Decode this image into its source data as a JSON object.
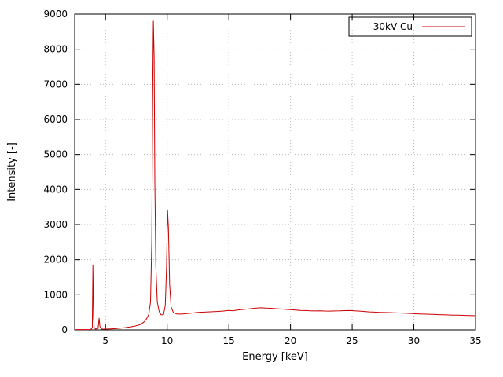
{
  "chart_data": {
    "type": "line",
    "title": "",
    "xlabel": "Energy [keV]",
    "ylabel": "Intensity [-]",
    "xlim": [
      2.5,
      35
    ],
    "ylim": [
      0,
      9000
    ],
    "xticks": [
      5,
      10,
      15,
      20,
      25,
      30,
      35
    ],
    "yticks": [
      0,
      1000,
      2000,
      3000,
      4000,
      5000,
      6000,
      7000,
      8000,
      9000
    ],
    "grid": true,
    "grid_color": "#b8b8b8",
    "axis_color": "#000000",
    "background": "#ffffff",
    "legend_position": "top-right",
    "legend_box": true,
    "series": [
      {
        "name": "30kV Cu",
        "color": "#cc0000",
        "points": [
          [
            2.6,
            8
          ],
          [
            3.0,
            10
          ],
          [
            3.4,
            8
          ],
          [
            3.8,
            12
          ],
          [
            3.93,
            60
          ],
          [
            3.98,
            1850
          ],
          [
            4.03,
            400
          ],
          [
            4.08,
            60
          ],
          [
            4.2,
            25
          ],
          [
            4.4,
            40
          ],
          [
            4.48,
            330
          ],
          [
            4.55,
            90
          ],
          [
            4.7,
            25
          ],
          [
            5.0,
            22
          ],
          [
            5.4,
            28
          ],
          [
            5.8,
            35
          ],
          [
            6.2,
            50
          ],
          [
            6.6,
            65
          ],
          [
            7.0,
            85
          ],
          [
            7.4,
            110
          ],
          [
            7.8,
            150
          ],
          [
            8.1,
            220
          ],
          [
            8.3,
            300
          ],
          [
            8.5,
            430
          ],
          [
            8.65,
            800
          ],
          [
            8.75,
            2500
          ],
          [
            8.82,
            6500
          ],
          [
            8.88,
            8800
          ],
          [
            8.94,
            7800
          ],
          [
            9.0,
            4200
          ],
          [
            9.08,
            1800
          ],
          [
            9.2,
            800
          ],
          [
            9.35,
            520
          ],
          [
            9.5,
            430
          ],
          [
            9.7,
            430
          ],
          [
            9.85,
            700
          ],
          [
            9.95,
            1800
          ],
          [
            10.03,
            3400
          ],
          [
            10.1,
            2900
          ],
          [
            10.2,
            1300
          ],
          [
            10.32,
            650
          ],
          [
            10.5,
            500
          ],
          [
            10.8,
            450
          ],
          [
            11.2,
            450
          ],
          [
            11.6,
            465
          ],
          [
            12.0,
            480
          ],
          [
            12.5,
            500
          ],
          [
            13.0,
            505
          ],
          [
            13.5,
            515
          ],
          [
            14.0,
            525
          ],
          [
            14.5,
            535
          ],
          [
            15.0,
            555
          ],
          [
            15.3,
            545
          ],
          [
            15.7,
            565
          ],
          [
            16.0,
            575
          ],
          [
            16.4,
            590
          ],
          [
            16.8,
            605
          ],
          [
            17.2,
            620
          ],
          [
            17.6,
            630
          ],
          [
            18.0,
            620
          ],
          [
            18.4,
            615
          ],
          [
            18.8,
            605
          ],
          [
            19.2,
            595
          ],
          [
            19.6,
            585
          ],
          [
            20.0,
            575
          ],
          [
            20.4,
            565
          ],
          [
            20.8,
            555
          ],
          [
            21.2,
            550
          ],
          [
            21.6,
            545
          ],
          [
            22.0,
            540
          ],
          [
            22.4,
            545
          ],
          [
            22.8,
            538
          ],
          [
            23.2,
            535
          ],
          [
            23.6,
            540
          ],
          [
            24.0,
            542
          ],
          [
            24.4,
            548
          ],
          [
            24.8,
            550
          ],
          [
            25.2,
            545
          ],
          [
            25.6,
            535
          ],
          [
            26.0,
            525
          ],
          [
            26.4,
            512
          ],
          [
            26.8,
            505
          ],
          [
            27.2,
            500
          ],
          [
            27.6,
            495
          ],
          [
            28.0,
            492
          ],
          [
            28.4,
            488
          ],
          [
            28.8,
            482
          ],
          [
            29.2,
            476
          ],
          [
            29.6,
            470
          ],
          [
            30.0,
            462
          ],
          [
            30.4,
            455
          ],
          [
            30.8,
            450
          ],
          [
            31.2,
            446
          ],
          [
            31.6,
            440
          ],
          [
            32.0,
            435
          ],
          [
            32.4,
            430
          ],
          [
            32.8,
            426
          ],
          [
            33.2,
            422
          ],
          [
            33.6,
            418
          ],
          [
            34.0,
            414
          ],
          [
            34.4,
            410
          ],
          [
            34.8,
            406
          ],
          [
            35.0,
            404
          ]
        ]
      }
    ]
  }
}
